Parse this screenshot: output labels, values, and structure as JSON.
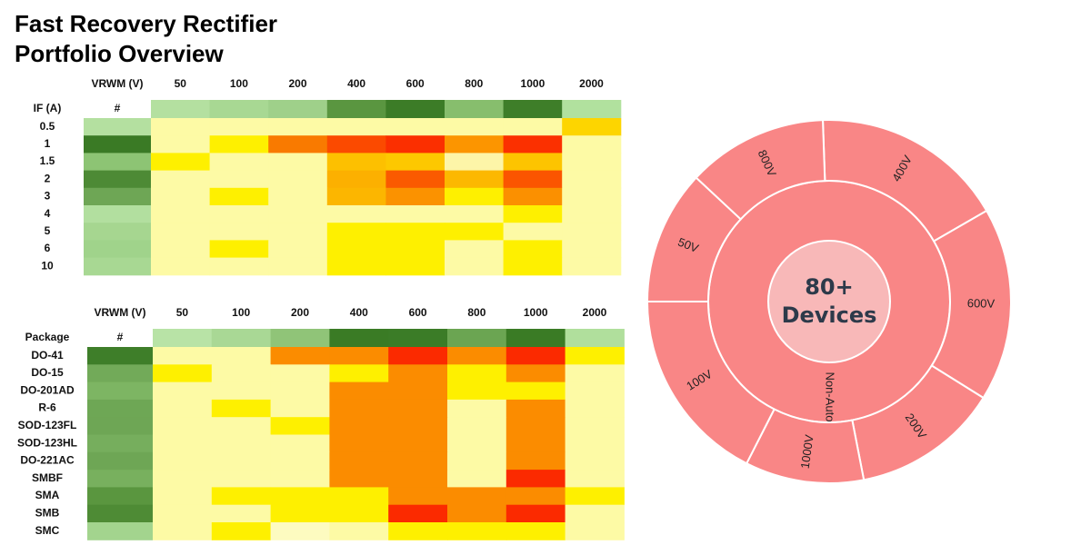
{
  "header": {
    "title_lines": [
      "Fast Recovery Rectifier",
      "Portfolio Overview"
    ]
  },
  "tables": [
    {
      "corner": "VRWM (V)",
      "row_header": "IF (A)",
      "count_header": "#",
      "columns": [
        "50",
        "100",
        "200",
        "400",
        "600",
        "800",
        "1000",
        "2000"
      ],
      "header_colors": [
        "#b4e0a0",
        "#a8d893",
        "#9fd08a",
        "#5a9640",
        "#3c7c27",
        "#87be6d",
        "#3e7e29",
        "#b1e19e"
      ],
      "rows": [
        {
          "label": "0.5",
          "count_color": "#b4e0a0",
          "cells": [
            "#fdfaa5",
            "#fdfaa5",
            "#fdfaa5",
            "#fdfaa5",
            "#fdfaa5",
            "#fdfaa5",
            "#fdfaa5",
            "#fdd500"
          ]
        },
        {
          "label": "1",
          "count_color": "#3a7a25",
          "cells": [
            "#fdfaa5",
            "#fef000",
            "#f97a00",
            "#fb4a00",
            "#fb2f00",
            "#fc9500",
            "#fb3000",
            "#fdfaa5"
          ]
        },
        {
          "label": "1.5",
          "count_color": "#8dc474",
          "cells": [
            "#fef000",
            "#fdfaa5",
            "#fdfaa5",
            "#fdc000",
            "#fdc800",
            "#fdf5a8",
            "#fdc400",
            "#fdfaa5"
          ]
        },
        {
          "label": "2",
          "count_color": "#4d8a35",
          "cells": [
            "#fdfaa5",
            "#fdfaa5",
            "#fdfaa5",
            "#fcb000",
            "#fa5a00",
            "#fcb800",
            "#fb5500",
            "#fdfaa5"
          ]
        },
        {
          "label": "3",
          "count_color": "#6ea655",
          "cells": [
            "#fdfaa5",
            "#fef000",
            "#fdfaa5",
            "#fcb600",
            "#fb9200",
            "#fef000",
            "#fb9000",
            "#fdfaa5"
          ]
        },
        {
          "label": "4",
          "count_color": "#b2df9f",
          "cells": [
            "#fdfaa5",
            "#fdfaa5",
            "#fdfaa5",
            "#fdfaa5",
            "#fdfaa5",
            "#fdfaa5",
            "#fef000",
            "#fdfaa5"
          ]
        },
        {
          "label": "5",
          "count_color": "#a6d690",
          "cells": [
            "#fdfaa5",
            "#fdfaa5",
            "#fdfaa5",
            "#fef000",
            "#fef000",
            "#fef000",
            "#fdfaa5",
            "#fdfaa5"
          ]
        },
        {
          "label": "6",
          "count_color": "#a0d38b",
          "cells": [
            "#fdfaa5",
            "#fef000",
            "#fdfaa5",
            "#fef000",
            "#fef000",
            "#fdfaa5",
            "#fef000",
            "#fdfaa5"
          ]
        },
        {
          "label": "10",
          "count_color": "#a8d893",
          "cells": [
            "#fdfaa5",
            "#fdfaa5",
            "#fdfaa5",
            "#fef000",
            "#fef000",
            "#fdfaa5",
            "#fef000",
            "#fdfaa5"
          ]
        }
      ]
    },
    {
      "corner": "VRWM (V)",
      "row_header": "Package",
      "count_header": "#",
      "columns": [
        "50",
        "100",
        "200",
        "400",
        "600",
        "800",
        "1000",
        "2000"
      ],
      "header_colors": [
        "#b8e3a6",
        "#a9d895",
        "#90c478",
        "#3a7b25",
        "#3b7c27",
        "#6ba552",
        "#3a7b25",
        "#b0df9c"
      ],
      "rows": [
        {
          "label": "DO-41",
          "count_color": "#3e7e29",
          "cells": [
            "#fdfaa5",
            "#fdfaa5",
            "#fb8c00",
            "#fb8c00",
            "#fb2a00",
            "#fb8c00",
            "#fb2a00",
            "#fef000"
          ]
        },
        {
          "label": "DO-15",
          "count_color": "#72aa59",
          "cells": [
            "#fef000",
            "#fdfaa5",
            "#fdfaa5",
            "#fef000",
            "#fb8c00",
            "#fef000",
            "#fb8c00",
            "#fdfaa5"
          ]
        },
        {
          "label": "DO-201AD",
          "count_color": "#7db563",
          "cells": [
            "#fdfaa5",
            "#fdfaa5",
            "#fdfaa5",
            "#fb8c00",
            "#fb8c00",
            "#fef000",
            "#fef000",
            "#fdfaa5"
          ]
        },
        {
          "label": "R-6",
          "count_color": "#6ea755",
          "cells": [
            "#fdfaa5",
            "#fef000",
            "#fdfaa5",
            "#fb8c00",
            "#fb8c00",
            "#fdfaa5",
            "#fb8c00",
            "#fdfaa5"
          ]
        },
        {
          "label": "SOD-123FL",
          "count_color": "#6ea655",
          "cells": [
            "#fdfaa5",
            "#fdfaa5",
            "#fef000",
            "#fb8c00",
            "#fb8c00",
            "#fdfaa5",
            "#fb8c00",
            "#fdfaa5"
          ]
        },
        {
          "label": "SOD-123HL",
          "count_color": "#76ae5d",
          "cells": [
            "#fdfaa5",
            "#fdfaa5",
            "#fdfaa5",
            "#fb8c00",
            "#fb8c00",
            "#fdfaa5",
            "#fb8c00",
            "#fdfaa5"
          ]
        },
        {
          "label": "DO-221AC",
          "count_color": "#6ea655",
          "cells": [
            "#fdfaa5",
            "#fdfaa5",
            "#fdfaa5",
            "#fb8c00",
            "#fb8c00",
            "#fdfaa5",
            "#fb8c00",
            "#fdfaa5"
          ]
        },
        {
          "label": "SMBF",
          "count_color": "#78b05e",
          "cells": [
            "#fdfaa5",
            "#fdfaa5",
            "#fdfaa5",
            "#fb8c00",
            "#fb8c00",
            "#fdfaa5",
            "#fb2a00",
            "#fdfaa5"
          ]
        },
        {
          "label": "SMA",
          "count_color": "#5a963f",
          "cells": [
            "#fdfaa5",
            "#fef000",
            "#fef000",
            "#fef000",
            "#fb8c00",
            "#fb8c00",
            "#fb8c00",
            "#fef000"
          ]
        },
        {
          "label": "SMB",
          "count_color": "#4e8b35",
          "cells": [
            "#fdfaa5",
            "#fdfaa5",
            "#fef000",
            "#fef000",
            "#fb2a00",
            "#fb8c00",
            "#fb2a00",
            "#fdfaa5"
          ]
        },
        {
          "label": "SMC",
          "count_color": "#a3d48e",
          "cells": [
            "#fdfaa5",
            "#fef000",
            "#fdfbc0",
            "#fdfaa5",
            "#fef000",
            "#fef000",
            "#fef000",
            "#fdfaa5"
          ]
        }
      ]
    }
  ],
  "sunburst": {
    "center_lines": [
      "80+",
      "Devices"
    ],
    "center_color": "#f8b8b8",
    "ring_color": "#f98686",
    "inner": {
      "label": "Non-Auto",
      "value": 360
    },
    "outer": [
      {
        "label": "400V",
        "value": 62
      },
      {
        "label": "600V",
        "value": 62
      },
      {
        "label": "200V",
        "value": 47
      },
      {
        "label": "1000V",
        "value": 38
      },
      {
        "label": "100V",
        "value": 63
      },
      {
        "label": "50V",
        "value": 43
      },
      {
        "label": "800V",
        "value": 45
      }
    ],
    "start_angle": -2
  }
}
